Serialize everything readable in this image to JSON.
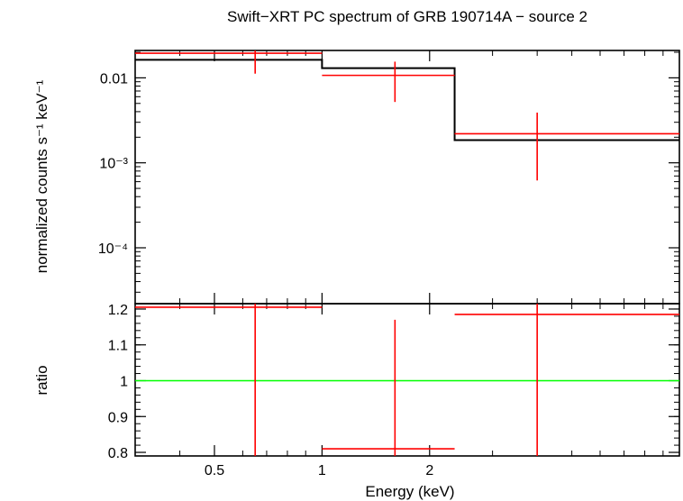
{
  "chart_data": {
    "title": "Swift−XRT PC spectrum of GRB 190714A − source 2",
    "xlabel": "Energy (keV)",
    "x_scale": "log",
    "xlim": [
      0.3,
      10
    ],
    "x_ticks": [
      {
        "value": 0.5,
        "label": "0.5"
      },
      {
        "value": 1,
        "label": "1"
      },
      {
        "value": 2,
        "label": "2"
      }
    ],
    "colors": {
      "data": "#ff0000",
      "model": "#000000",
      "unity": "#00ff00",
      "frame": "#000000"
    },
    "panels": [
      {
        "id": "spectrum",
        "type": "step+errorbar",
        "ylabel": "normalized counts s⁻¹ keV⁻¹",
        "y_scale": "log",
        "ylim": [
          2.2e-05,
          0.021
        ],
        "y_ticks": [
          {
            "value": 0.01,
            "label": "0.01"
          },
          {
            "value": 0.001,
            "label": "10⁻³"
          },
          {
            "value": 0.0001,
            "label": "10⁻⁴"
          }
        ],
        "data": [
          {
            "x": 0.65,
            "xlo": 0.3,
            "xhi": 1.0,
            "y": 0.0195,
            "ylo": 0.0112,
            "yhi": 0.0215
          },
          {
            "x": 1.6,
            "xlo": 1.0,
            "xhi": 2.35,
            "y": 0.0107,
            "ylo": 0.0052,
            "yhi": 0.0155
          },
          {
            "x": 4.0,
            "xlo": 2.35,
            "xhi": 10.0,
            "y": 0.0022,
            "ylo": 0.00062,
            "yhi": 0.0039
          }
        ],
        "model": [
          {
            "xlo": 0.3,
            "xhi": 1.0,
            "y": 0.0163
          },
          {
            "xlo": 1.0,
            "xhi": 2.35,
            "y": 0.013
          },
          {
            "xlo": 2.35,
            "xhi": 10.0,
            "y": 0.00185
          }
        ]
      },
      {
        "id": "ratio",
        "type": "errorbar",
        "ylabel": "ratio",
        "y_scale": "linear",
        "ylim": [
          0.79,
          1.215
        ],
        "y_ticks": [
          {
            "value": 0.8,
            "label": "0.8"
          },
          {
            "value": 0.9,
            "label": "0.9"
          },
          {
            "value": 1.0,
            "label": "1"
          },
          {
            "value": 1.1,
            "label": "1.1"
          },
          {
            "value": 1.2,
            "label": "1.2"
          }
        ],
        "reference_line": 1.0,
        "data": [
          {
            "x": 0.65,
            "xlo": 0.3,
            "xhi": 1.0,
            "y": 1.205,
            "ylo": 0.79,
            "yhi": 1.215
          },
          {
            "x": 1.6,
            "xlo": 1.0,
            "xhi": 2.35,
            "y": 0.81,
            "ylo": 0.79,
            "yhi": 1.17
          },
          {
            "x": 4.0,
            "xlo": 2.35,
            "xhi": 10.0,
            "y": 1.185,
            "ylo": 0.79,
            "yhi": 1.215
          }
        ]
      }
    ]
  }
}
